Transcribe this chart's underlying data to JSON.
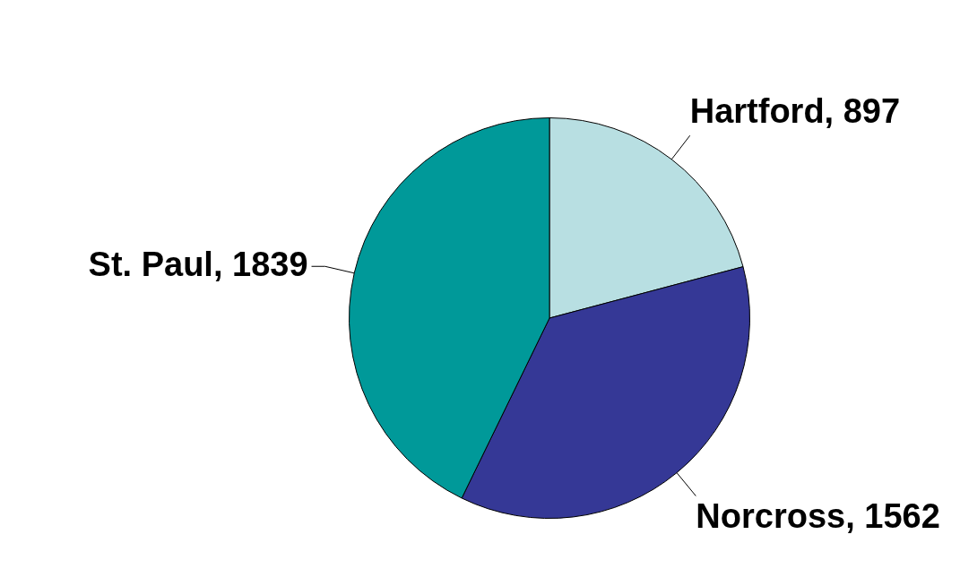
{
  "chart_data": {
    "type": "pie",
    "categories": [
      "Hartford",
      "Norcross",
      "St. Paul"
    ],
    "values": [
      897,
      1562,
      1839
    ],
    "value_labels": [
      ", 897",
      ", 1562",
      ", 1839"
    ],
    "colors": [
      "#b8dfe2",
      "#353896",
      "#009999"
    ],
    "legend": false
  }
}
